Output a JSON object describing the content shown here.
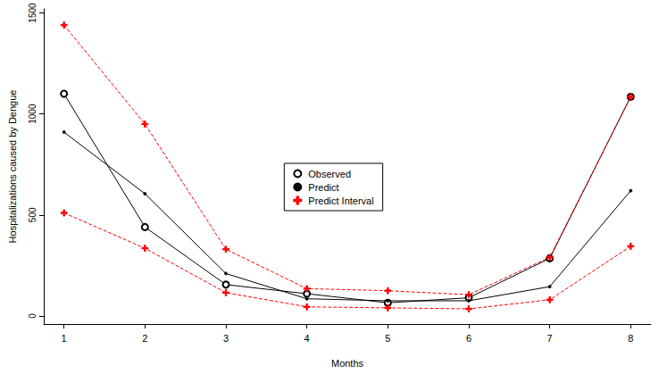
{
  "chart_data": {
    "type": "line",
    "x_label": "Months",
    "y_label": "Hospitalizations caused by Dengue",
    "xlim": [
      0.75,
      8.25
    ],
    "xticks": [
      1,
      2,
      3,
      4,
      5,
      6,
      7,
      8
    ],
    "ylim": [
      -40,
      1520
    ],
    "yticks": [
      0,
      500,
      1000,
      1500
    ],
    "grid": false,
    "legend": "center",
    "series": [
      {
        "name": "Observed",
        "color": "#000000",
        "marker": "circle",
        "line_style": "solid",
        "x": [
          1,
          2,
          3,
          4,
          5,
          6,
          7,
          8
        ],
        "values": [
          1100,
          440,
          155,
          110,
          65,
          90,
          285,
          1085
        ]
      },
      {
        "name": "Predict",
        "color": "#000000",
        "marker": "point",
        "line_style": "solid",
        "x": [
          1,
          2,
          3,
          4,
          5,
          6,
          7,
          8
        ],
        "values": [
          910,
          605,
          210,
          85,
          75,
          75,
          145,
          620
        ]
      },
      {
        "name": "Predict Interval",
        "color": "#ff0000",
        "marker": "plus",
        "line_style": "dashed",
        "x": [
          1,
          2,
          3,
          4,
          5,
          6,
          7,
          8
        ],
        "values": [
          1440,
          950,
          330,
          135,
          125,
          105,
          290,
          1085
        ]
      },
      {
        "name": "Predict Interval",
        "color": "#ff0000",
        "marker": "plus",
        "line_style": "dashed",
        "x": [
          1,
          2,
          3,
          4,
          5,
          6,
          7,
          8
        ],
        "values": [
          510,
          335,
          115,
          45,
          40,
          35,
          80,
          345
        ]
      }
    ]
  }
}
